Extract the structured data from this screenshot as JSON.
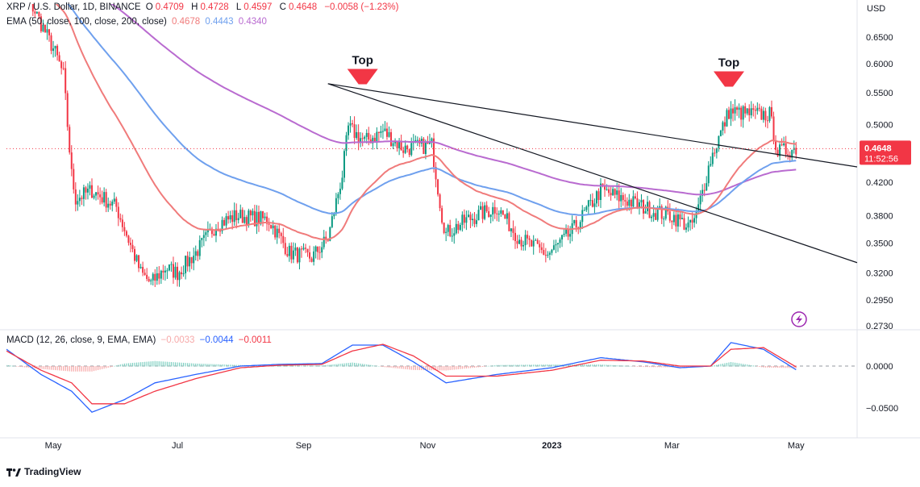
{
  "header": {
    "symbol": "XRP / U.S. Dollar, 1D, BINANCE",
    "open_label": "O",
    "open": "0.4709",
    "high_label": "H",
    "high": "0.4728",
    "low_label": "L",
    "low": "0.4597",
    "close_label": "C",
    "close": "0.4648",
    "change": "−0.0058 (−1.23%)",
    "ema_label": "EMA (50, close, 100, close, 200, close)",
    "ema50": "0.4678",
    "ema100": "0.4443",
    "ema200": "0.4340",
    "macd_label": "MACD (12, 26, close, 9, EMA, EMA)",
    "macd_hist": "−0.0033",
    "macd_line": "−0.0044",
    "macd_signal": "−0.0011"
  },
  "price_axis": {
    "currency": "USD",
    "ticks": [
      "0.6500",
      "0.6000",
      "0.5500",
      "0.5000",
      "0.4200",
      "0.3800",
      "0.3500",
      "0.3200",
      "0.2950",
      "0.2730"
    ],
    "last_price": "0.4648",
    "countdown": "11:52:56"
  },
  "macd_axis": {
    "ticks": [
      "0.0000",
      "−0.0500"
    ]
  },
  "time_axis": {
    "ticks": [
      "May",
      "Jul",
      "Sep",
      "Nov",
      "2023",
      "Mar",
      "May"
    ]
  },
  "annotations": {
    "top1": "Top",
    "top2": "Top"
  },
  "branding": {
    "name": "TradingView"
  },
  "colors": {
    "up": "#089981",
    "down": "#f23645",
    "ema50": "#f07b7b",
    "ema100": "#6fa0ee",
    "ema200": "#b96bd0",
    "macd_line": "#2962ff",
    "signal_line": "#f23645"
  },
  "chart_data": {
    "type": "line",
    "title": "XRP / U.S. Dollar, 1D, BINANCE",
    "x_range": [
      "2022-04-08",
      "2023-05-31"
    ],
    "y_range": [
      0.273,
      0.68
    ],
    "log_scale": true,
    "grid": false,
    "close_path": {
      "dates": [
        "2022-04-08",
        "2022-04-20",
        "2022-05-02",
        "2022-05-06",
        "2022-05-10",
        "2022-05-12",
        "2022-05-20",
        "2022-06-01",
        "2022-06-13",
        "2022-06-18",
        "2022-06-25",
        "2022-07-01",
        "2022-07-10",
        "2022-07-20",
        "2022-07-30",
        "2022-08-15",
        "2022-08-25",
        "2022-09-05",
        "2022-09-13",
        "2022-09-20",
        "2022-09-23",
        "2022-10-01",
        "2022-10-10",
        "2022-10-20",
        "2022-11-03",
        "2022-11-08",
        "2022-11-10",
        "2022-11-20",
        "2022-12-05",
        "2022-12-16",
        "2022-12-30",
        "2023-01-10",
        "2023-01-25",
        "2023-02-10",
        "2023-02-20",
        "2023-03-01",
        "2023-03-10",
        "2023-03-13",
        "2023-03-20",
        "2023-03-29",
        "2023-04-10",
        "2023-04-18",
        "2023-04-22",
        "2023-05-01"
      ],
      "values": [
        0.78,
        0.72,
        0.62,
        0.58,
        0.43,
        0.4,
        0.41,
        0.39,
        0.32,
        0.31,
        0.325,
        0.32,
        0.34,
        0.37,
        0.38,
        0.375,
        0.34,
        0.335,
        0.355,
        0.43,
        0.495,
        0.475,
        0.49,
        0.465,
        0.47,
        0.38,
        0.36,
        0.375,
        0.39,
        0.355,
        0.338,
        0.36,
        0.41,
        0.395,
        0.385,
        0.38,
        0.367,
        0.38,
        0.45,
        0.52,
        0.515,
        0.515,
        0.46,
        0.465
      ]
    },
    "ema_values_last": {
      "ema50": 0.4678,
      "ema100": 0.4443,
      "ema200": 0.434
    },
    "trendlines": [
      {
        "from": [
          "2022-09-13",
          0.565
        ],
        "to": [
          "2023-05-31",
          0.44
        ]
      },
      {
        "from": [
          "2022-09-13",
          0.565
        ],
        "to": [
          "2023-05-31",
          0.33
        ]
      }
    ],
    "annotations": [
      {
        "text": "Top",
        "date": "2022-09-30",
        "price": 0.56
      },
      {
        "text": "Top",
        "date": "2023-03-29",
        "price": 0.556
      }
    ],
    "macd": {
      "y_range": [
        -0.07,
        0.035
      ],
      "dates": [
        "2022-04-08",
        "2022-04-25",
        "2022-05-10",
        "2022-05-20",
        "2022-06-05",
        "2022-06-20",
        "2022-07-10",
        "2022-08-01",
        "2022-08-20",
        "2022-09-10",
        "2022-09-25",
        "2022-10-10",
        "2022-10-25",
        "2022-11-10",
        "2022-12-05",
        "2023-01-01",
        "2023-01-25",
        "2023-02-15",
        "2023-03-05",
        "2023-03-20",
        "2023-03-30",
        "2023-04-15",
        "2023-05-01"
      ],
      "macd_line": [
        0.02,
        -0.01,
        -0.03,
        -0.055,
        -0.04,
        -0.02,
        -0.01,
        0.0,
        0.002,
        0.003,
        0.025,
        0.025,
        0.005,
        -0.02,
        -0.01,
        -0.002,
        0.01,
        0.005,
        -0.002,
        0.0,
        0.028,
        0.02,
        -0.0044
      ],
      "signal_line": [
        0.018,
        -0.005,
        -0.02,
        -0.045,
        -0.045,
        -0.03,
        -0.015,
        -0.002,
        0.001,
        0.002,
        0.018,
        0.026,
        0.012,
        -0.012,
        -0.012,
        -0.005,
        0.007,
        0.006,
        0.0,
        0.0,
        0.02,
        0.022,
        -0.0011
      ]
    }
  }
}
